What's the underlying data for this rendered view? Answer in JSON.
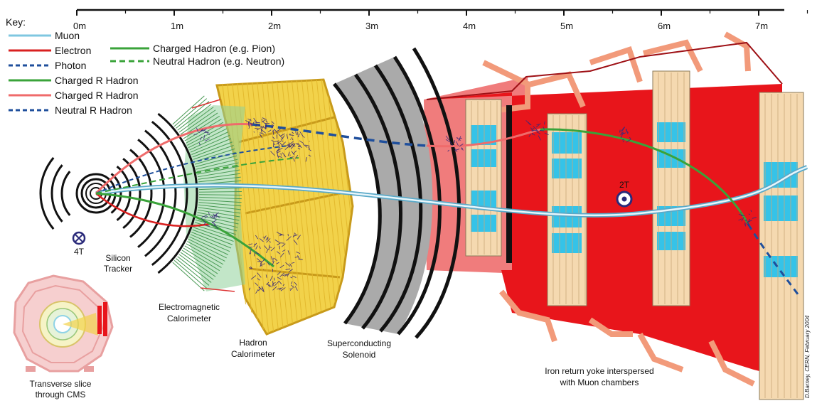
{
  "key": {
    "title": "Key:",
    "left_entries": [
      {
        "label": "Muon",
        "color": "#7fc7e0",
        "dash": "solid"
      },
      {
        "label": "Electron",
        "color": "#d92020",
        "dash": "solid"
      },
      {
        "label": "Photon",
        "color": "#1f4f9c",
        "dash": "dashed"
      },
      {
        "label": "Charged  R Hadron",
        "color": "#3aa33a",
        "dash": "solid"
      },
      {
        "label": "Charged  R Hadron",
        "color": "#ef6b6b",
        "dash": "solid"
      },
      {
        "label": "Neutral  R Hadron",
        "color": "#1f4f9c",
        "dash": "dashed"
      }
    ],
    "right_entries": [
      {
        "label": "Charged Hadron (e.g. Pion)",
        "color": "#3aa33a",
        "dash": "solid"
      },
      {
        "label": "Neutral Hadron (e.g. Neutron)",
        "color": "#3aa33a",
        "dash": "dashed"
      }
    ]
  },
  "scale": {
    "ticks": [
      "0m",
      "1m",
      "2m",
      "3m",
      "4m",
      "5m",
      "6m",
      "7m"
    ]
  },
  "labels": {
    "tracker": [
      "Silicon",
      "Tracker"
    ],
    "ecal": [
      "Electromagnetic",
      "Calorimeter"
    ],
    "hcal": [
      "Hadron",
      "Calorimeter"
    ],
    "solenoid": [
      "Superconducting",
      "Solenoid"
    ],
    "yoke": [
      "Iron return yoke interspersed",
      "with Muon chambers"
    ],
    "slice": [
      "Transverse slice",
      "through CMS"
    ],
    "field_inner": "4T",
    "field_outer": "2T",
    "credit": "D.Barney, CERN, February 2004"
  },
  "colors": {
    "muon": "#7fc7e0",
    "electron": "#d92020",
    "photon": "#1f4f9c",
    "charged_hadron": "#3aa33a",
    "neutral_hadron": "#3aa33a",
    "iron_yoke": "#e8151b",
    "yoke_frame": "#f29a7a",
    "hcal": "#f2d24a",
    "ecal": "#8fd19a",
    "solenoid": "#aaaaaa",
    "chamber_cyan": "#35c3e8",
    "chamber_tan": "#f5d9b0",
    "shower": "#3a2a7a"
  }
}
